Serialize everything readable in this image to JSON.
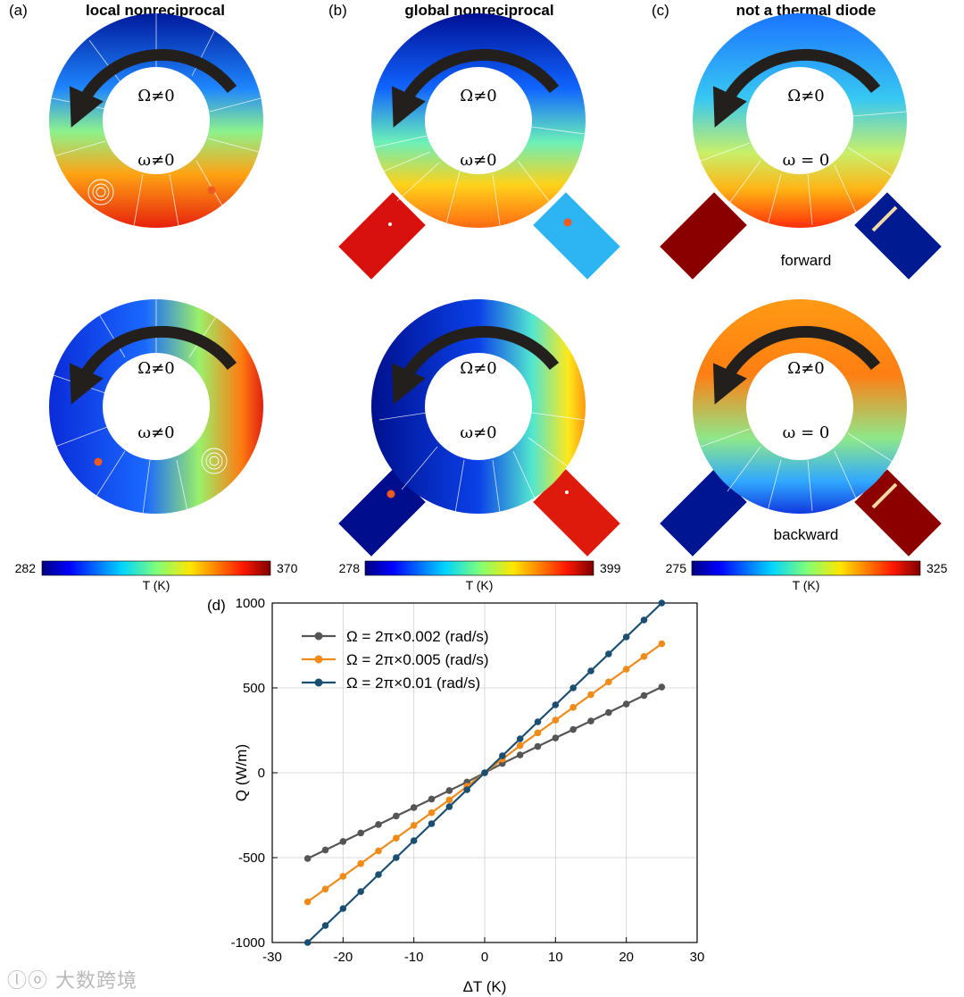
{
  "panels": [
    {
      "id": "a",
      "label": "(a)",
      "title": "local nonreciprocal",
      "scale": {
        "min": "282",
        "max": "370",
        "unit_label": "T (K)"
      },
      "states": [
        {
          "omega_big": "Ω≠0",
          "omega_small": "ω≠0",
          "caption": ""
        },
        {
          "omega_big": "Ω≠0",
          "omega_small": "ω≠0",
          "caption": ""
        }
      ]
    },
    {
      "id": "b",
      "label": "(b)",
      "title": "global nonreciprocal",
      "scale": {
        "min": "278",
        "max": "399",
        "unit_label": "T (K)"
      },
      "states": [
        {
          "omega_big": "Ω≠0",
          "omega_small": "ω≠0",
          "caption": ""
        },
        {
          "omega_big": "Ω≠0",
          "omega_small": "ω≠0",
          "caption": ""
        }
      ]
    },
    {
      "id": "c",
      "label": "(c)",
      "title": "not a thermal diode",
      "scale": {
        "min": "275",
        "max": "325",
        "unit_label": "T (K)"
      },
      "states": [
        {
          "omega_big": "Ω≠0",
          "omega_small": "ω = 0",
          "caption": "forward"
        },
        {
          "omega_big": "Ω≠0",
          "omega_small": "ω = 0",
          "caption": "backward"
        }
      ]
    }
  ],
  "chart_data": {
    "type": "line",
    "label": "(d)",
    "xlabel": "ΔT (K)",
    "ylabel": "Q (W/m)",
    "xlim": [
      -30,
      30
    ],
    "ylim": [
      -1000,
      1000
    ],
    "xticks": [
      -30,
      -20,
      -10,
      0,
      10,
      20,
      30
    ],
    "yticks": [
      -1000,
      -500,
      0,
      500,
      1000
    ],
    "grid": true,
    "legend": "top-left",
    "x": [
      -25,
      -22.5,
      -20,
      -17.5,
      -15,
      -12.5,
      -10,
      -7.5,
      -5,
      -2.5,
      0,
      2.5,
      5,
      7.5,
      10,
      12.5,
      15,
      17.5,
      20,
      22.5,
      25
    ],
    "series": [
      {
        "name": "Ω = 2π×0.002 (rad/s)",
        "color": "#555555",
        "values": [
          -505,
          -455,
          -405,
          -355,
          -305,
          -255,
          -205,
          -155,
          -105,
          -55,
          0,
          55,
          105,
          155,
          205,
          255,
          305,
          355,
          405,
          455,
          505
        ]
      },
      {
        "name": "Ω = 2π×0.005 (rad/s)",
        "color": "#f08a19",
        "values": [
          -760,
          -685,
          -610,
          -535,
          -460,
          -385,
          -310,
          -235,
          -160,
          -80,
          0,
          80,
          160,
          235,
          310,
          385,
          460,
          535,
          610,
          685,
          760
        ]
      },
      {
        "name": "Ω = 2π×0.01 (rad/s)",
        "color": "#1b4f72",
        "values": [
          -1000,
          -900,
          -800,
          -700,
          -600,
          -500,
          -400,
          -300,
          -200,
          -100,
          0,
          100,
          200,
          300,
          400,
          500,
          600,
          700,
          800,
          900,
          1000
        ]
      }
    ]
  }
}
